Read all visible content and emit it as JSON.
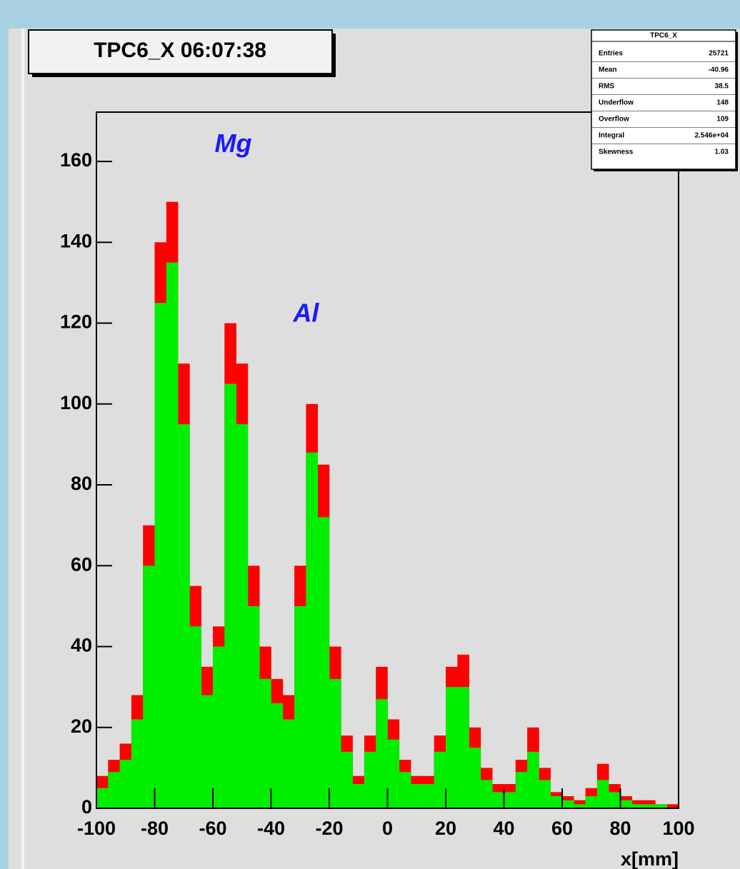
{
  "chart_data": {
    "type": "histogram",
    "title": "TPC6_X  06:07:38",
    "x_label": "x[mm]",
    "annotations": [
      {
        "text": "Mg",
        "x": -53,
        "y": 164
      },
      {
        "text": "Al",
        "x": -28,
        "y": 122
      }
    ],
    "bins": [
      -100,
      -96,
      -92,
      -88,
      -84,
      -80,
      -76,
      -72,
      -68,
      -64,
      -60,
      -56,
      -52,
      -48,
      -44,
      -40,
      -36,
      -32,
      -28,
      -24,
      -20,
      -16,
      -12,
      -8,
      -4,
      0,
      4,
      8,
      12,
      16,
      20,
      24,
      28,
      32,
      36,
      40,
      44,
      48,
      52,
      56,
      60,
      64,
      68,
      72,
      76,
      80,
      84,
      88,
      92,
      96,
      100
    ],
    "series": [
      {
        "color": "#ff0000",
        "values": [
          8,
          12,
          16,
          28,
          70,
          140,
          150,
          110,
          55,
          35,
          45,
          120,
          110,
          60,
          40,
          32,
          28,
          60,
          100,
          85,
          40,
          18,
          8,
          18,
          35,
          22,
          12,
          8,
          8,
          18,
          35,
          38,
          20,
          10,
          6,
          6,
          12,
          20,
          10,
          4,
          3,
          2,
          5,
          11,
          6,
          3,
          2,
          2,
          1,
          1
        ]
      },
      {
        "color": "#00ee00",
        "values": [
          5,
          9,
          12,
          22,
          60,
          125,
          135,
          95,
          45,
          28,
          40,
          105,
          95,
          50,
          32,
          26,
          22,
          50,
          88,
          72,
          32,
          14,
          6,
          14,
          27,
          17,
          9,
          6,
          6,
          14,
          30,
          30,
          15,
          7,
          4,
          4,
          9,
          14,
          7,
          3,
          2,
          1,
          3,
          7,
          4,
          2,
          1,
          1,
          1,
          0
        ]
      }
    ],
    "xlim": [
      -100,
      100
    ],
    "ylim": [
      0,
      172.2
    ],
    "xticks": [
      -100,
      -80,
      -60,
      -40,
      -20,
      0,
      20,
      40,
      60,
      80,
      100
    ],
    "yticks": [
      0,
      20,
      40,
      60,
      80,
      100,
      120,
      140,
      160
    ],
    "stats": {
      "title": "TPC6_X",
      "rows": [
        [
          "Entries",
          "25721"
        ],
        [
          "Mean",
          "-40.96"
        ],
        [
          "RMS",
          "38.5"
        ],
        [
          "Underflow",
          "148"
        ],
        [
          "Overflow",
          "109"
        ],
        [
          "Integral",
          "2.546e+04"
        ],
        [
          "Skewness",
          "1.03"
        ]
      ]
    }
  }
}
